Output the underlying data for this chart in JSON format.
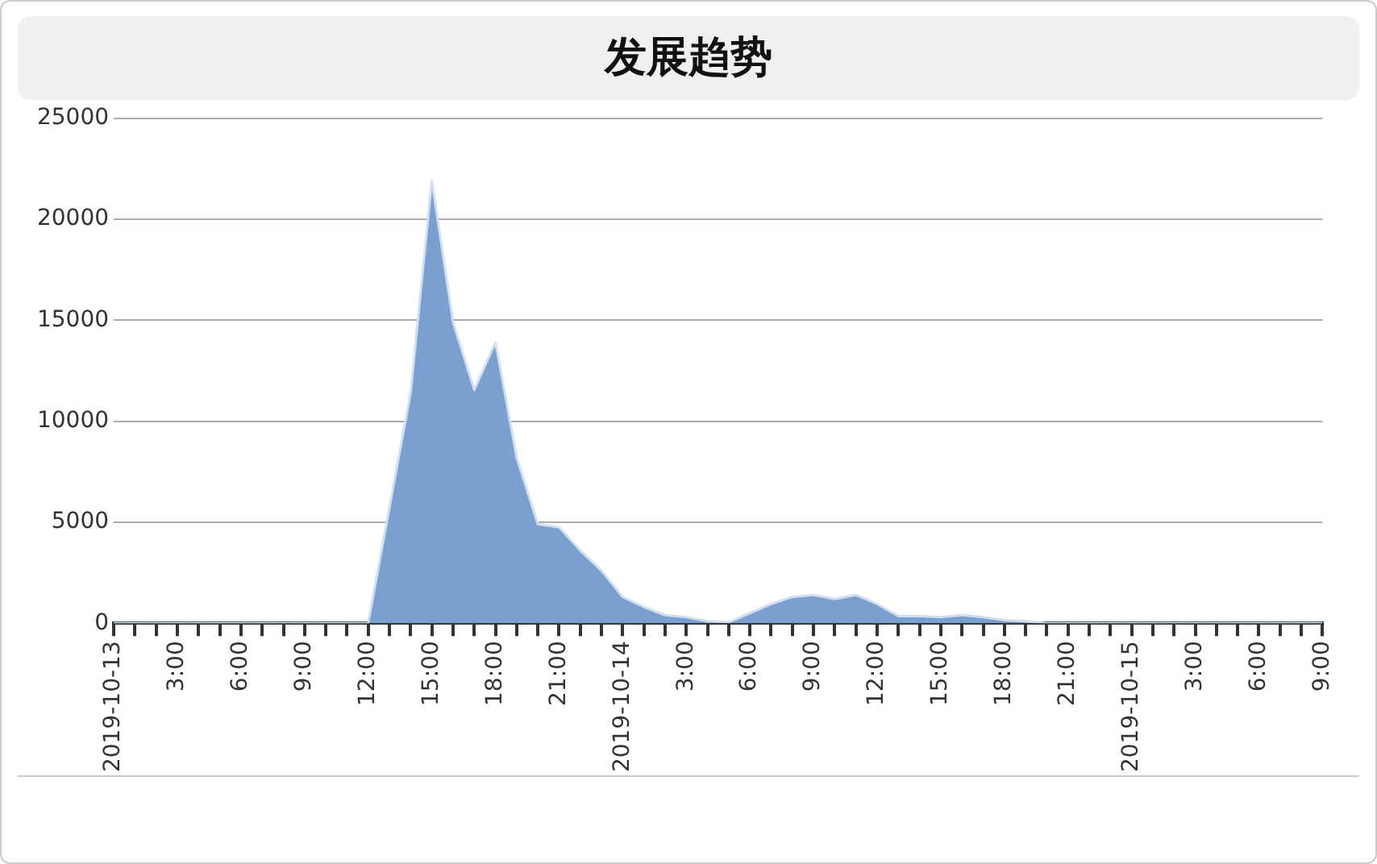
{
  "chart_data": {
    "type": "area",
    "title": "发展趋势",
    "x": [
      "2019-10-13T00:00",
      "2019-10-13T01:00",
      "2019-10-13T02:00",
      "2019-10-13T03:00",
      "2019-10-13T04:00",
      "2019-10-13T05:00",
      "2019-10-13T06:00",
      "2019-10-13T07:00",
      "2019-10-13T08:00",
      "2019-10-13T09:00",
      "2019-10-13T10:00",
      "2019-10-13T11:00",
      "2019-10-13T12:00",
      "2019-10-13T13:00",
      "2019-10-13T14:00",
      "2019-10-13T15:00",
      "2019-10-13T16:00",
      "2019-10-13T17:00",
      "2019-10-13T18:00",
      "2019-10-13T19:00",
      "2019-10-13T20:00",
      "2019-10-13T21:00",
      "2019-10-13T22:00",
      "2019-10-13T23:00",
      "2019-10-14T00:00",
      "2019-10-14T01:00",
      "2019-10-14T02:00",
      "2019-10-14T03:00",
      "2019-10-14T04:00",
      "2019-10-14T05:00",
      "2019-10-14T06:00",
      "2019-10-14T07:00",
      "2019-10-14T08:00",
      "2019-10-14T09:00",
      "2019-10-14T10:00",
      "2019-10-14T11:00",
      "2019-10-14T12:00",
      "2019-10-14T13:00",
      "2019-10-14T14:00",
      "2019-10-14T15:00",
      "2019-10-14T16:00",
      "2019-10-14T17:00",
      "2019-10-14T18:00",
      "2019-10-14T19:00",
      "2019-10-14T20:00",
      "2019-10-14T21:00",
      "2019-10-14T22:00",
      "2019-10-14T23:00",
      "2019-10-15T00:00",
      "2019-10-15T01:00",
      "2019-10-15T02:00",
      "2019-10-15T03:00",
      "2019-10-15T04:00",
      "2019-10-15T05:00",
      "2019-10-15T06:00",
      "2019-10-15T07:00",
      "2019-10-15T08:00",
      "2019-10-15T09:00"
    ],
    "series": [
      {
        "color": "#7aa0cf",
        "values": [
          0,
          0,
          0,
          0,
          0,
          0,
          0,
          0,
          0,
          0,
          0,
          0,
          0,
          5700,
          11400,
          21900,
          14900,
          11550,
          13900,
          8200,
          4900,
          4750,
          3600,
          2600,
          1300,
          800,
          400,
          300,
          100,
          50,
          500,
          950,
          1300,
          1400,
          1200,
          1400,
          950,
          350,
          350,
          300,
          400,
          300,
          150,
          100,
          0,
          0,
          0,
          0,
          0,
          0,
          0,
          0,
          0,
          0,
          0,
          0,
          0,
          0
        ]
      }
    ],
    "xlim": [
      "2019-10-13T00:00",
      "2019-10-15T09:00"
    ],
    "xticks": [
      {
        "value": "2019-10-13T00:00",
        "label": "2019-10-13"
      },
      {
        "value": "2019-10-13T01:00",
        "label": null
      },
      {
        "value": "2019-10-13T02:00",
        "label": null
      },
      {
        "value": "2019-10-13T03:00",
        "label": "3:00"
      },
      {
        "value": "2019-10-13T04:00",
        "label": null
      },
      {
        "value": "2019-10-13T05:00",
        "label": null
      },
      {
        "value": "2019-10-13T06:00",
        "label": "6:00"
      },
      {
        "value": "2019-10-13T07:00",
        "label": null
      },
      {
        "value": "2019-10-13T08:00",
        "label": null
      },
      {
        "value": "2019-10-13T09:00",
        "label": "9:00"
      },
      {
        "value": "2019-10-13T10:00",
        "label": null
      },
      {
        "value": "2019-10-13T11:00",
        "label": null
      },
      {
        "value": "2019-10-13T12:00",
        "label": "12:00"
      },
      {
        "value": "2019-10-13T13:00",
        "label": null
      },
      {
        "value": "2019-10-13T14:00",
        "label": null
      },
      {
        "value": "2019-10-13T15:00",
        "label": "15:00"
      },
      {
        "value": "2019-10-13T16:00",
        "label": null
      },
      {
        "value": "2019-10-13T17:00",
        "label": null
      },
      {
        "value": "2019-10-13T18:00",
        "label": "18:00"
      },
      {
        "value": "2019-10-13T19:00",
        "label": null
      },
      {
        "value": "2019-10-13T20:00",
        "label": null
      },
      {
        "value": "2019-10-13T21:00",
        "label": "21:00"
      },
      {
        "value": "2019-10-13T22:00",
        "label": null
      },
      {
        "value": "2019-10-13T23:00",
        "label": null
      },
      {
        "value": "2019-10-14T00:00",
        "label": "2019-10-14"
      },
      {
        "value": "2019-10-14T01:00",
        "label": null
      },
      {
        "value": "2019-10-14T02:00",
        "label": null
      },
      {
        "value": "2019-10-14T03:00",
        "label": "3:00"
      },
      {
        "value": "2019-10-14T04:00",
        "label": null
      },
      {
        "value": "2019-10-14T05:00",
        "label": null
      },
      {
        "value": "2019-10-14T06:00",
        "label": "6:00"
      },
      {
        "value": "2019-10-14T07:00",
        "label": null
      },
      {
        "value": "2019-10-14T08:00",
        "label": null
      },
      {
        "value": "2019-10-14T09:00",
        "label": "9:00"
      },
      {
        "value": "2019-10-14T10:00",
        "label": null
      },
      {
        "value": "2019-10-14T11:00",
        "label": null
      },
      {
        "value": "2019-10-14T12:00",
        "label": "12:00"
      },
      {
        "value": "2019-10-14T13:00",
        "label": null
      },
      {
        "value": "2019-10-14T14:00",
        "label": null
      },
      {
        "value": "2019-10-14T15:00",
        "label": "15:00"
      },
      {
        "value": "2019-10-14T16:00",
        "label": null
      },
      {
        "value": "2019-10-14T17:00",
        "label": null
      },
      {
        "value": "2019-10-14T18:00",
        "label": "18:00"
      },
      {
        "value": "2019-10-14T19:00",
        "label": null
      },
      {
        "value": "2019-10-14T20:00",
        "label": null
      },
      {
        "value": "2019-10-14T21:00",
        "label": "21:00"
      },
      {
        "value": "2019-10-14T22:00",
        "label": null
      },
      {
        "value": "2019-10-14T23:00",
        "label": null
      },
      {
        "value": "2019-10-15T00:00",
        "label": "2019-10-15"
      },
      {
        "value": "2019-10-15T01:00",
        "label": null
      },
      {
        "value": "2019-10-15T02:00",
        "label": null
      },
      {
        "value": "2019-10-15T03:00",
        "label": "3:00"
      },
      {
        "value": "2019-10-15T04:00",
        "label": null
      },
      {
        "value": "2019-10-15T05:00",
        "label": null
      },
      {
        "value": "2019-10-15T06:00",
        "label": "6:00"
      },
      {
        "value": "2019-10-15T07:00",
        "label": null
      },
      {
        "value": "2019-10-15T08:00",
        "label": null
      },
      {
        "value": "2019-10-15T09:00",
        "label": "9:00"
      }
    ],
    "ylim": [
      0,
      25000
    ],
    "yticks": [
      0,
      5000,
      10000,
      15000,
      20000,
      25000
    ],
    "grid": "y",
    "legend": false,
    "marker": "none"
  }
}
